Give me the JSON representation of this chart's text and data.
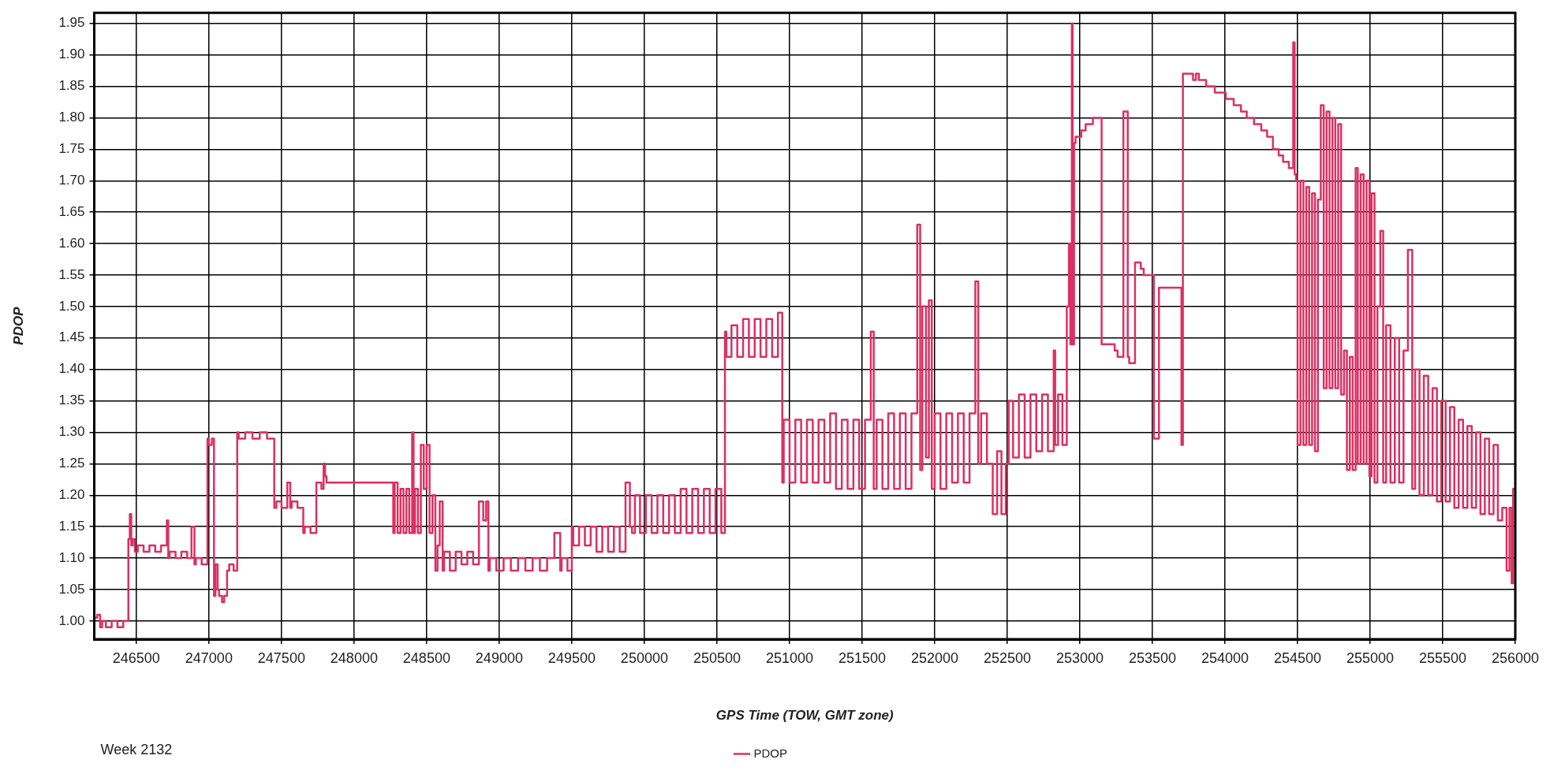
{
  "chart_data": {
    "type": "step",
    "xlabel": "GPS Time (TOW, GMT zone)",
    "ylabel": "PDOP",
    "annotations": [
      "Week 2132"
    ],
    "xlim": [
      246210,
      256000
    ],
    "ylim": [
      0.971,
      1.967
    ],
    "xticks": [
      246500,
      247000,
      247500,
      248000,
      248500,
      249000,
      249500,
      250000,
      250500,
      251000,
      251500,
      252000,
      252500,
      253000,
      253500,
      254000,
      254500,
      255000,
      255500,
      256000
    ],
    "yticks": [
      {
        "value": 1.0,
        "label": "1.00"
      },
      {
        "value": 1.05,
        "label": "1.05"
      },
      {
        "value": 1.1,
        "label": "1.10"
      },
      {
        "value": 1.15,
        "label": "1.15"
      },
      {
        "value": 1.2,
        "label": "1.20"
      },
      {
        "value": 1.25,
        "label": "1.25"
      },
      {
        "value": 1.3,
        "label": "1.30"
      },
      {
        "value": 1.35,
        "label": "1.35"
      },
      {
        "value": 1.4,
        "label": "1.40"
      },
      {
        "value": 1.45,
        "label": "1.45"
      },
      {
        "value": 1.5,
        "label": "1.50"
      },
      {
        "value": 1.55,
        "label": "1.55"
      },
      {
        "value": 1.6,
        "label": "1.60"
      },
      {
        "value": 1.65,
        "label": "1.65"
      },
      {
        "value": 1.7,
        "label": "1.70"
      },
      {
        "value": 1.75,
        "label": "1.75"
      },
      {
        "value": 1.8,
        "label": "1.80"
      },
      {
        "value": 1.85,
        "label": "1.85"
      },
      {
        "value": 1.9,
        "label": "1.90"
      },
      {
        "value": 1.95,
        "label": "1.95"
      }
    ],
    "grid": true,
    "legend": "bottom",
    "marker": "none",
    "line_style": "solid",
    "series": [
      {
        "name": "PDOP",
        "color": "#dc3062",
        "x": [
          246210,
          246230,
          246250,
          246265,
          246290,
          246330,
          246370,
          246410,
          246445,
          246455,
          246465,
          246475,
          246490,
          246510,
          246550,
          246590,
          246630,
          246670,
          246710,
          246720,
          246730,
          246770,
          246810,
          246850,
          246880,
          246900,
          246910,
          246950,
          246990,
          247000,
          247020,
          247035,
          247045,
          247060,
          247070,
          247090,
          247105,
          247125,
          247140,
          247170,
          247195,
          247205,
          247250,
          247300,
          247350,
          247400,
          247450,
          247465,
          247500,
          247540,
          247560,
          247570,
          247610,
          247650,
          247660,
          247700,
          247740,
          247775,
          247790,
          247800,
          247810,
          247830,
          248270,
          248280,
          248300,
          248320,
          248340,
          248360,
          248380,
          248400,
          248410,
          248420,
          248440,
          248460,
          248480,
          248500,
          248520,
          248540,
          248560,
          248575,
          248590,
          248610,
          248620,
          248660,
          248700,
          248740,
          248780,
          248820,
          248860,
          248890,
          248910,
          248925,
          248935,
          248980,
          249030,
          249080,
          249130,
          249180,
          249230,
          249280,
          249330,
          249380,
          249420,
          249430,
          249470,
          249500,
          249510,
          249550,
          249590,
          249630,
          249670,
          249710,
          249750,
          249790,
          249830,
          249870,
          249900,
          249915,
          249935,
          249970,
          250010,
          250050,
          250090,
          250130,
          250170,
          250210,
          250250,
          250290,
          250330,
          250370,
          250410,
          250450,
          250490,
          250530,
          250555,
          250565,
          250600,
          250640,
          250680,
          250720,
          250760,
          250800,
          250840,
          250880,
          250920,
          250950,
          250960,
          251000,
          251040,
          251080,
          251120,
          251160,
          251200,
          251240,
          251280,
          251320,
          251360,
          251400,
          251440,
          251480,
          251520,
          251560,
          251580,
          251600,
          251640,
          251680,
          251720,
          251760,
          251800,
          251840,
          251880,
          251900,
          251915,
          251940,
          251960,
          251980,
          252000,
          252040,
          252080,
          252120,
          252160,
          252200,
          252240,
          252280,
          252300,
          252320,
          252360,
          252400,
          252430,
          252460,
          252490,
          252510,
          252540,
          252580,
          252620,
          252660,
          252700,
          252740,
          252780,
          252820,
          252830,
          252850,
          252880,
          252910,
          252925,
          252935,
          252945,
          252950,
          252960,
          252970,
          253010,
          253040,
          253090,
          253150,
          253240,
          253260,
          253300,
          253330,
          253340,
          253380,
          253420,
          253440,
          253510,
          253545,
          253700,
          253710,
          253780,
          253800,
          253820,
          253870,
          253930,
          254005,
          254060,
          254110,
          254150,
          254200,
          254250,
          254290,
          254330,
          254370,
          254400,
          254440,
          254470,
          254480,
          254490,
          254500,
          254520,
          254540,
          254560,
          254580,
          254600,
          254620,
          254640,
          254660,
          254680,
          254700,
          254720,
          254740,
          254760,
          254780,
          254800,
          254820,
          254840,
          254860,
          254880,
          254900,
          254915,
          254935,
          254955,
          254975,
          254995,
          255010,
          255030,
          255050,
          255070,
          255090,
          255110,
          255140,
          255170,
          255200,
          255230,
          255260,
          255290,
          255310,
          255340,
          255370,
          255400,
          255430,
          255460,
          255490,
          255520,
          255550,
          255580,
          255610,
          255640,
          255670,
          255700,
          255730,
          255760,
          255790,
          255820,
          255850,
          255880,
          255910,
          255940,
          255960,
          255975,
          255985,
          255995
        ],
        "values": [
          1.01,
          1.005,
          1.01,
          0.99,
          1.0,
          0.99,
          1.0,
          0.99,
          1.0,
          1.13,
          1.17,
          1.12,
          1.13,
          1.11,
          1.12,
          1.11,
          1.12,
          1.11,
          1.12,
          1.16,
          1.1,
          1.11,
          1.1,
          1.11,
          1.1,
          1.15,
          1.09,
          1.1,
          1.09,
          1.29,
          1.28,
          1.29,
          1.04,
          1.09,
          1.05,
          1.04,
          1.03,
          1.04,
          1.08,
          1.09,
          1.08,
          1.3,
          1.29,
          1.3,
          1.29,
          1.3,
          1.29,
          1.18,
          1.19,
          1.18,
          1.22,
          1.18,
          1.19,
          1.18,
          1.14,
          1.15,
          1.14,
          1.22,
          1.21,
          1.25,
          1.23,
          1.22,
          1.22,
          1.14,
          1.22,
          1.14,
          1.21,
          1.14,
          1.21,
          1.14,
          1.3,
          1.14,
          1.21,
          1.14,
          1.28,
          1.21,
          1.28,
          1.14,
          1.2,
          1.08,
          1.12,
          1.19,
          1.08,
          1.11,
          1.08,
          1.11,
          1.09,
          1.11,
          1.09,
          1.19,
          1.16,
          1.19,
          1.08,
          1.1,
          1.08,
          1.1,
          1.08,
          1.1,
          1.08,
          1.1,
          1.08,
          1.1,
          1.14,
          1.08,
          1.1,
          1.08,
          1.15,
          1.12,
          1.15,
          1.12,
          1.15,
          1.11,
          1.15,
          1.11,
          1.15,
          1.11,
          1.22,
          1.15,
          1.14,
          1.2,
          1.14,
          1.2,
          1.14,
          1.2,
          1.14,
          1.2,
          1.14,
          1.21,
          1.14,
          1.21,
          1.14,
          1.21,
          1.14,
          1.21,
          1.14,
          1.46,
          1.42,
          1.47,
          1.42,
          1.48,
          1.42,
          1.48,
          1.42,
          1.48,
          1.42,
          1.49,
          1.22,
          1.32,
          1.22,
          1.32,
          1.22,
          1.32,
          1.22,
          1.32,
          1.22,
          1.33,
          1.21,
          1.32,
          1.21,
          1.32,
          1.21,
          1.32,
          1.46,
          1.21,
          1.32,
          1.21,
          1.33,
          1.21,
          1.33,
          1.21,
          1.33,
          1.63,
          1.24,
          1.5,
          1.26,
          1.51,
          1.21,
          1.33,
          1.21,
          1.33,
          1.22,
          1.33,
          1.22,
          1.33,
          1.54,
          1.25,
          1.33,
          1.25,
          1.17,
          1.27,
          1.17,
          1.25,
          1.35,
          1.26,
          1.36,
          1.26,
          1.36,
          1.27,
          1.36,
          1.27,
          1.43,
          1.28,
          1.36,
          1.28,
          1.5,
          1.6,
          1.44,
          1.95,
          1.44,
          1.76,
          1.77,
          1.78,
          1.79,
          1.8,
          1.44,
          1.43,
          1.42,
          1.81,
          1.42,
          1.41,
          1.57,
          1.56,
          1.55,
          1.29,
          1.53,
          1.28,
          1.87,
          1.86,
          1.87,
          1.86,
          1.85,
          1.84,
          1.83,
          1.82,
          1.81,
          1.8,
          1.79,
          1.78,
          1.77,
          1.75,
          1.74,
          1.73,
          1.72,
          1.92,
          1.71,
          1.7,
          1.28,
          1.7,
          1.28,
          1.69,
          1.28,
          1.68,
          1.27,
          1.67,
          1.82,
          1.37,
          1.81,
          1.37,
          1.8,
          1.37,
          1.79,
          1.36,
          1.43,
          1.24,
          1.42,
          1.24,
          1.72,
          1.25,
          1.71,
          1.25,
          1.7,
          1.23,
          1.68,
          1.22,
          1.5,
          1.62,
          1.22,
          1.47,
          1.22,
          1.45,
          1.22,
          1.43,
          1.59,
          1.21,
          1.4,
          1.2,
          1.39,
          1.2,
          1.37,
          1.19,
          1.35,
          1.19,
          1.34,
          1.18,
          1.32,
          1.18,
          1.31,
          1.18,
          1.3,
          1.17,
          1.29,
          1.17,
          1.28,
          1.16,
          1.18,
          1.08,
          1.18,
          1.06,
          1.21
        ]
      }
    ]
  }
}
